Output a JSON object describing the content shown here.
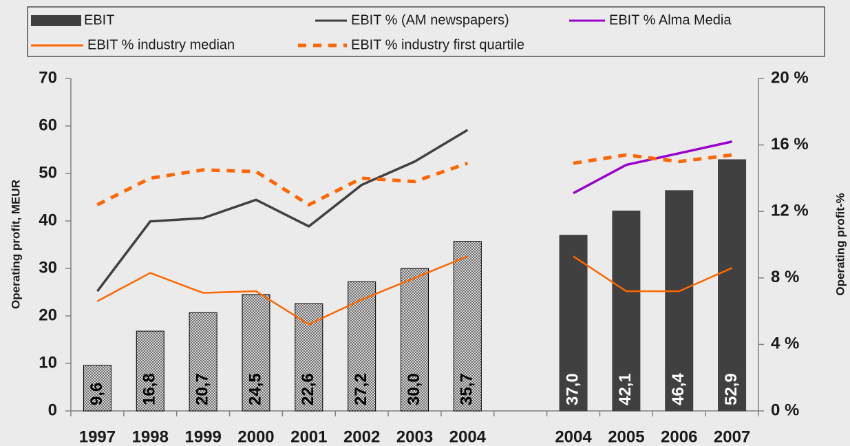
{
  "chart_data": {
    "type": "combo",
    "categories": [
      "1997",
      "1998",
      "1999",
      "2000",
      "2001",
      "2002",
      "2003",
      "2004",
      null,
      "2004",
      "2005",
      "2006",
      "2007"
    ],
    "ylabel": "Operating profit, MEUR",
    "y2label": "Operating profit-%",
    "ylim": [
      0,
      70
    ],
    "yticks": [
      0,
      10,
      20,
      30,
      40,
      50,
      60,
      70
    ],
    "y2lim": [
      0,
      20
    ],
    "y2ticks": [
      {
        "value": 0,
        "label": "0 %"
      },
      {
        "value": 4,
        "label": "4 %"
      },
      {
        "value": 8,
        "label": "8 %"
      },
      {
        "value": 12,
        "label": "12 %"
      },
      {
        "value": 16,
        "label": "16 %"
      },
      {
        "value": 20,
        "label": "20 %"
      }
    ],
    "series": [
      {
        "name": "EBIT",
        "type": "bar",
        "color": "#404040",
        "styles": [
          "hatched",
          "hatched",
          "hatched",
          "hatched",
          "hatched",
          "hatched",
          "hatched",
          "hatched",
          null,
          "solid",
          "solid",
          "solid",
          "solid"
        ],
        "values": [
          9.6,
          16.8,
          20.7,
          24.5,
          22.6,
          27.2,
          30.0,
          35.7,
          null,
          37.0,
          42.1,
          46.4,
          52.9
        ],
        "value_labels": [
          "9,6",
          "16,8",
          "20,7",
          "24,5",
          "22,6",
          "27,2",
          "30,0",
          "35,7",
          null,
          "37,0",
          "42,1",
          "46,4",
          "52,9"
        ]
      },
      {
        "name": "EBIT % (AM newspapers)",
        "type": "line",
        "axis": "y2",
        "color": "#404040",
        "values": [
          7.2,
          11.4,
          11.6,
          12.7,
          11.1,
          13.6,
          15.0,
          16.9,
          null,
          null,
          null,
          null,
          null
        ]
      },
      {
        "name": "EBIT % Alma Media",
        "type": "line",
        "axis": "y2",
        "color": "#9900cc",
        "values": [
          null,
          null,
          null,
          null,
          null,
          null,
          null,
          null,
          null,
          13.1,
          14.8,
          15.5,
          16.2
        ]
      },
      {
        "name": "EBIT % industry median",
        "type": "line",
        "axis": "y2",
        "color": "#ff6600",
        "values": [
          6.6,
          8.3,
          7.1,
          7.2,
          5.2,
          6.7,
          8.0,
          9.3,
          null,
          9.3,
          7.2,
          7.2,
          8.6
        ]
      },
      {
        "name": "EBIT % industry first quartile",
        "type": "line",
        "axis": "y2",
        "color": "#ff6600",
        "dashed": true,
        "values": [
          12.4,
          14.0,
          14.5,
          14.4,
          12.4,
          14.0,
          13.8,
          14.9,
          null,
          14.9,
          15.4,
          15.0,
          15.4
        ]
      }
    ]
  }
}
